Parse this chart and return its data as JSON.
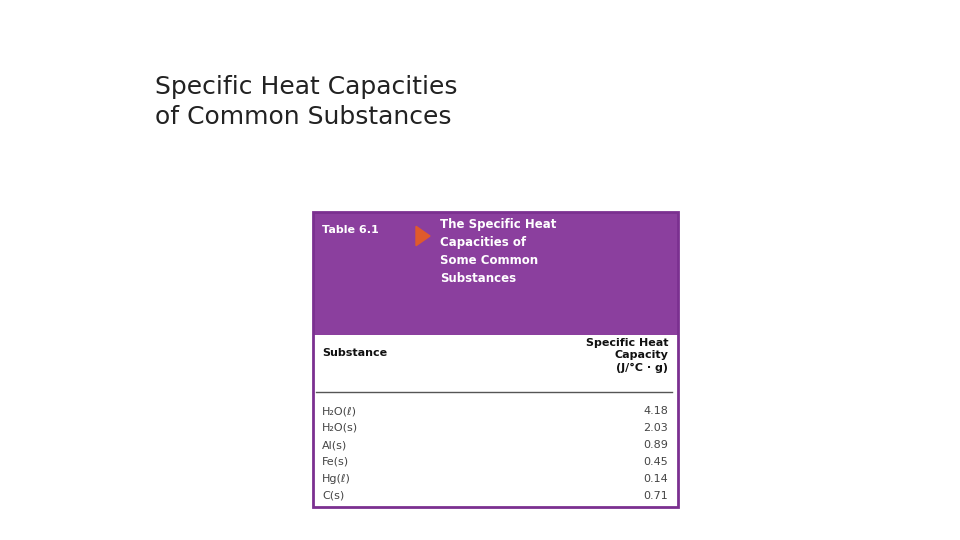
{
  "title_line1": "Specific Heat Capacities",
  "title_line2": "of Common Substances",
  "title_fontsize": 18,
  "title_color": "#222222",
  "header_bg_color": "#8B3F9E",
  "header_text_color": "#FFFFFF",
  "table_label": "Table 6.1",
  "arrow_color": "#E05A2B",
  "table_title": "The Specific Heat\nCapacities of\nSome Common\nSubstances",
  "col_header1": "Substance",
  "col_header2": "Specific Heat\nCapacity\n(J/°C · g)",
  "substances": [
    "H₂O(ℓ)",
    "H₂O(s)",
    "Al(s)",
    "Fe(s)",
    "Hg(ℓ)",
    "C(s)"
  ],
  "values": [
    "4.18",
    "2.03",
    "0.89",
    "0.45",
    "0.14",
    "0.71"
  ],
  "border_color": "#7B3090",
  "separator_color": "#555555",
  "bg_color": "#FFFFFF",
  "fig_width": 9.6,
  "fig_height": 5.4,
  "dpi": 100
}
